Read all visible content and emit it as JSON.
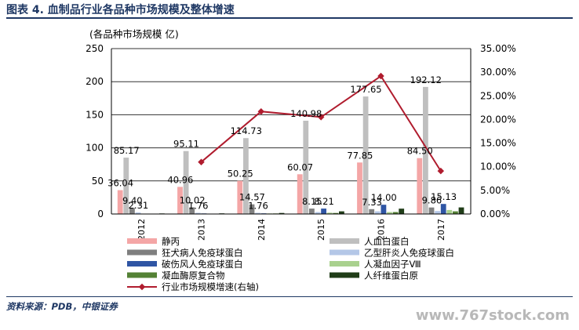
{
  "header": {
    "title": "图表 4. 血制品行业各品种市场规模及整体增速"
  },
  "footer": {
    "source": "资料来源：PDB，中银证券",
    "watermark": "www.767stock.com"
  },
  "colors": {
    "jingbing": "#f4a6a6",
    "albumin": "#bfbfbf",
    "rabies": "#7f7f7f",
    "hepb": "#b4c7e7",
    "tetanus": "#2f55a4",
    "f8": "#a9d18e",
    "pcc": "#548235",
    "fibrinogen": "#203d18",
    "growth_line": "#b01c2e"
  },
  "chart_data": {
    "type": "bar",
    "ylabel": "(各品种市场规模 亿)",
    "ylim": [
      0,
      250
    ],
    "yticks": [
      "0",
      "50",
      "100",
      "150",
      "200",
      "250"
    ],
    "y2lim": [
      0,
      35
    ],
    "y2ticks": [
      "0.00%",
      "5.00%",
      "10.00%",
      "15.00%",
      "20.00%",
      "25.00%",
      "30.00%",
      "35.00%"
    ],
    "categories": [
      "2012",
      "2013",
      "2014",
      "2015",
      "2016",
      "2017"
    ],
    "legend_position": "bottom",
    "series": [
      {
        "name": "静丙",
        "color_key": "jingbing",
        "values": [
          36.04,
          40.96,
          50.25,
          60.07,
          77.85,
          84.5
        ],
        "labels": [
          "36.04",
          "40.96",
          "50.25",
          "60.07",
          "77.85",
          "84.50"
        ]
      },
      {
        "name": "人血白蛋白",
        "color_key": "albumin",
        "values": [
          85.17,
          95.11,
          114.73,
          140.98,
          177.65,
          192.12
        ],
        "labels": [
          "85.17",
          "95.11",
          "114.73",
          "140.98",
          "177.65",
          "192.12"
        ]
      },
      {
        "name": "狂犬病人免疫球蛋白",
        "color_key": "rabies",
        "values": [
          9.4,
          10.02,
          14.57,
          8.15,
          7.33,
          9.86
        ],
        "labels": [
          "9.40",
          "10.02",
          "14.57",
          "8.15",
          "7.33",
          "9.86"
        ]
      },
      {
        "name": "乙型肝炎人免疫球蛋白",
        "color_key": "hepb",
        "values": [
          2.31,
          1.76,
          1.76,
          3.0,
          4.0,
          4.5
        ],
        "labels": [
          "2.31",
          "1.76",
          "1.76",
          "",
          "",
          ""
        ]
      },
      {
        "name": "破伤风人免疫球蛋白",
        "color_key": "tetanus",
        "values": [
          0.6,
          0.8,
          1.0,
          8.21,
          14.0,
          15.13
        ],
        "labels": [
          "",
          "",
          "",
          "8.21",
          "14.00",
          "15.13"
        ]
      },
      {
        "name": "人凝血因子Ⅷ",
        "color_key": "f8",
        "values": [
          0.5,
          0.6,
          0.8,
          2.0,
          3.0,
          6.0
        ],
        "labels": [
          "",
          "",
          "",
          "",
          "",
          ""
        ]
      },
      {
        "name": "凝血酶原复合物",
        "color_key": "pcc",
        "values": [
          0.5,
          0.6,
          0.8,
          1.5,
          3.0,
          4.0
        ],
        "labels": [
          "",
          "",
          "",
          "",
          "",
          ""
        ]
      },
      {
        "name": "人纤维蛋白原",
        "color_key": "fibrinogen",
        "values": [
          0.8,
          1.0,
          1.5,
          4.0,
          8.0,
          10.0
        ],
        "labels": [
          "",
          "",
          "",
          "",
          "",
          ""
        ]
      }
    ],
    "line": {
      "name": "行业市场规模增速(右轴)",
      "color_key": "growth_line",
      "values": [
        null,
        11.0,
        21.7,
        20.5,
        29.2,
        9.1
      ]
    }
  }
}
